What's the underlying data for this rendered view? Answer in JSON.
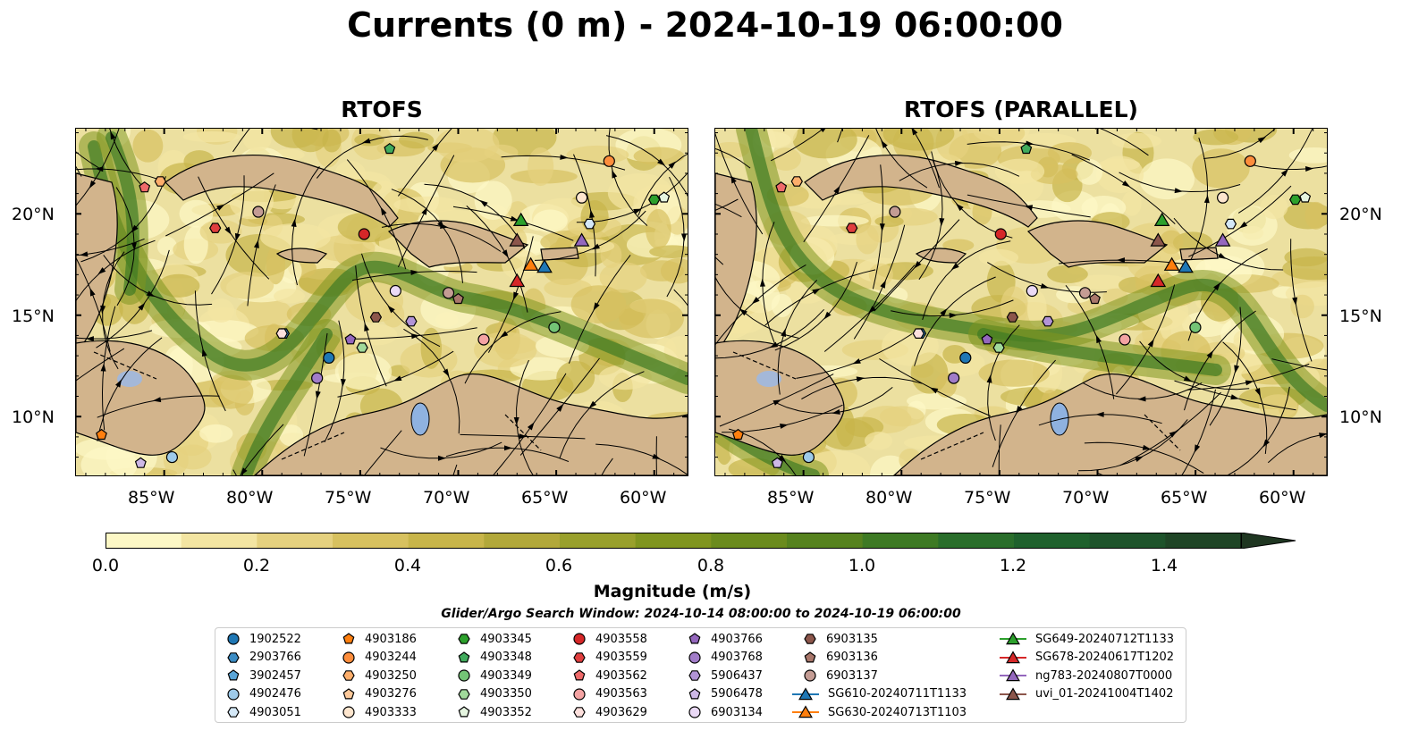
{
  "title": "Currents (0 m) - 2024-10-19 06:00:00",
  "panels": [
    {
      "id": "rtofs",
      "title": "RTOFS"
    },
    {
      "id": "parallel",
      "title": "RTOFS (PARALLEL)"
    }
  ],
  "axes": {
    "lon_ticks": [
      "85°W",
      "80°W",
      "75°W",
      "70°W",
      "65°W",
      "60°W"
    ],
    "lat_ticks": [
      "20°N",
      "15°N",
      "10°N"
    ]
  },
  "colorbar": {
    "label": "Magnitude (m/s)",
    "ticks": [
      "0.0",
      "0.2",
      "0.4",
      "0.6",
      "0.8",
      "1.0",
      "1.2",
      "1.4"
    ],
    "range": [
      0.0,
      1.6
    ],
    "colors": [
      "#fdf8c6",
      "#f3e5a2",
      "#e5d17f",
      "#d7c15f",
      "#c8b54a",
      "#b2a83a",
      "#99a02c",
      "#80951f",
      "#6b8b1d",
      "#56821e",
      "#3e7a24",
      "#2a6e2b",
      "#1f612d",
      "#1e532b",
      "#1f4526",
      "#1f3621"
    ],
    "extend": "max"
  },
  "search_window": "Glider/Argo Search Window: 2024-10-14 08:00:00 to 2024-10-19 06:00:00",
  "legend": [
    {
      "label": "1902522",
      "marker": "circle",
      "color": "#1f77b4"
    },
    {
      "label": "2903766",
      "marker": "hexagon",
      "color": "#3b8cc4"
    },
    {
      "label": "3902457",
      "marker": "pentagon",
      "color": "#5aa5d8"
    },
    {
      "label": "4902476",
      "marker": "circle",
      "color": "#9ecae9"
    },
    {
      "label": "4903051",
      "marker": "hexagon",
      "color": "#d4e8f7"
    },
    {
      "label": "4903186",
      "marker": "pentagon",
      "color": "#ff7f0e"
    },
    {
      "label": "4903244",
      "marker": "circle",
      "color": "#fd8d3c"
    },
    {
      "label": "4903250",
      "marker": "hexagon",
      "color": "#fdae6b"
    },
    {
      "label": "4903276",
      "marker": "pentagon",
      "color": "#fdc99a"
    },
    {
      "label": "4903333",
      "marker": "circle",
      "color": "#fee6ce"
    },
    {
      "label": "4903345",
      "marker": "hexagon",
      "color": "#2ca02c"
    },
    {
      "label": "4903348",
      "marker": "pentagon",
      "color": "#41ab5d"
    },
    {
      "label": "4903349",
      "marker": "circle",
      "color": "#74c476"
    },
    {
      "label": "4903350",
      "marker": "hexagon",
      "color": "#a1d99b"
    },
    {
      "label": "4903352",
      "marker": "pentagon",
      "color": "#e5f5e0"
    },
    {
      "label": "4903558",
      "marker": "circle",
      "color": "#d62728"
    },
    {
      "label": "4903559",
      "marker": "hexagon",
      "color": "#e03e3e"
    },
    {
      "label": "4903562",
      "marker": "pentagon",
      "color": "#ef6a6a"
    },
    {
      "label": "4903563",
      "marker": "circle",
      "color": "#f4a3a3"
    },
    {
      "label": "4903629",
      "marker": "hexagon",
      "color": "#fde0dd"
    },
    {
      "label": "4903766",
      "marker": "pentagon",
      "color": "#9467bd"
    },
    {
      "label": "4903768",
      "marker": "circle",
      "color": "#a17cc8"
    },
    {
      "label": "5906437",
      "marker": "hexagon",
      "color": "#b294d6"
    },
    {
      "label": "5906478",
      "marker": "pentagon",
      "color": "#cdb8e6"
    },
    {
      "label": "6903134",
      "marker": "circle",
      "color": "#ead9f6"
    },
    {
      "label": "6903135",
      "marker": "hexagon",
      "color": "#8c564b"
    },
    {
      "label": "6903136",
      "marker": "pentagon",
      "color": "#a9776b"
    },
    {
      "label": "6903137",
      "marker": "circle",
      "color": "#c49c94"
    },
    {
      "label": "SG610-20240711T1133",
      "marker": "triangle",
      "color": "#1f77b4"
    },
    {
      "label": "SG630-20240713T1103",
      "marker": "triangle",
      "color": "#ff7f0e"
    },
    {
      "label": "SG649-20240712T1133",
      "marker": "triangle",
      "color": "#2ca02c"
    },
    {
      "label": "SG678-20240617T1202",
      "marker": "triangle",
      "color": "#d62728"
    },
    {
      "label": "ng783-20240807T0000",
      "marker": "triangle",
      "color": "#9467bd"
    },
    {
      "label": "uvi_01-20241004T1402",
      "marker": "triangle",
      "color": "#8c564b"
    }
  ],
  "markers_rtofs": [
    {
      "id": "1902522",
      "lon": -76.6,
      "lat": 12.9
    },
    {
      "id": "2903766",
      "lon": -78.9,
      "lat": 14.1
    },
    {
      "id": "4902476",
      "lon": -84.6,
      "lat": 8.0
    },
    {
      "id": "4903051",
      "lon": -63.3,
      "lat": 19.5
    },
    {
      "id": "4903186",
      "lon": -88.2,
      "lat": 9.1
    },
    {
      "id": "4903244",
      "lon": -62.3,
      "lat": 22.6
    },
    {
      "id": "4903250",
      "lon": -85.2,
      "lat": 21.6
    },
    {
      "id": "4903333",
      "lon": -63.7,
      "lat": 20.8
    },
    {
      "id": "4903345",
      "lon": -60.0,
      "lat": 20.7
    },
    {
      "id": "4903348",
      "lon": -73.5,
      "lat": 23.2
    },
    {
      "id": "4903349",
      "lon": -65.1,
      "lat": 14.4
    },
    {
      "id": "4903350",
      "lon": -74.9,
      "lat": 13.4
    },
    {
      "id": "4903352",
      "lon": -59.5,
      "lat": 20.8
    },
    {
      "id": "4903558",
      "lon": -74.8,
      "lat": 19.0
    },
    {
      "id": "4903559",
      "lon": -82.4,
      "lat": 19.3
    },
    {
      "id": "4903562",
      "lon": -86.0,
      "lat": 21.3
    },
    {
      "id": "4903563",
      "lon": -68.7,
      "lat": 13.8
    },
    {
      "id": "4903629",
      "lon": -79.0,
      "lat": 14.1
    },
    {
      "id": "4903766",
      "lon": -75.5,
      "lat": 13.8
    },
    {
      "id": "4903768",
      "lon": -77.2,
      "lat": 11.9
    },
    {
      "id": "5906437",
      "lon": -72.4,
      "lat": 14.7
    },
    {
      "id": "5906478",
      "lon": -86.2,
      "lat": 7.7
    },
    {
      "id": "6903134",
      "lon": -73.2,
      "lat": 16.2
    },
    {
      "id": "6903135",
      "lon": -74.2,
      "lat": 14.9
    },
    {
      "id": "6903136",
      "lon": -70.0,
      "lat": 15.8
    },
    {
      "id": "6903137",
      "lon": -70.5,
      "lat": 16.1
    },
    {
      "id": "6903137b",
      "lon": -80.2,
      "lat": 20.1
    },
    {
      "id": "SG610-20240711T1133",
      "lon": -65.6,
      "lat": 17.4
    },
    {
      "id": "SG630-20240713T1103",
      "lon": -66.3,
      "lat": 17.5
    },
    {
      "id": "SG649-20240712T1133",
      "lon": -66.8,
      "lat": 19.7
    },
    {
      "id": "SG678-20240617T1202",
      "lon": -67.0,
      "lat": 16.7
    },
    {
      "id": "ng783-20240807T0000",
      "lon": -63.7,
      "lat": 18.7
    },
    {
      "id": "uvi_01-20241004T1402",
      "lon": -67.0,
      "lat": 18.7
    }
  ]
}
